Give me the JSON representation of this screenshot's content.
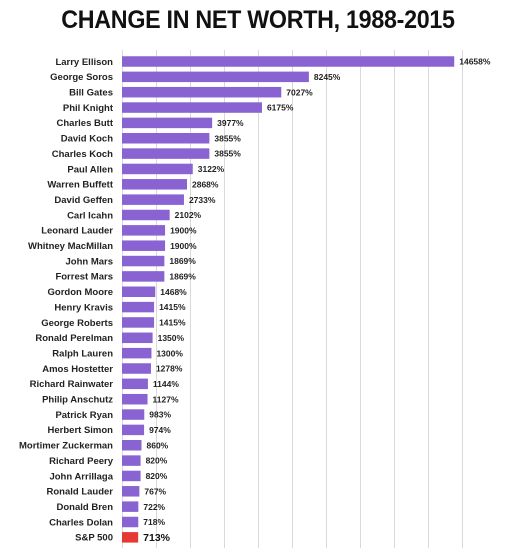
{
  "chart_data": {
    "type": "bar",
    "orientation": "horizontal",
    "title": "CHANGE IN NET WORTH, 1988-2015",
    "xlabel": "",
    "ylabel": "",
    "value_suffix": "%",
    "xlim": [
      0,
      15000
    ],
    "grid": true,
    "legend": "none",
    "colors": {
      "bar": "#8A63D2",
      "highlight": "#E53935"
    },
    "highlight_category": "S&P 500",
    "categories": [
      "Larry Ellison",
      "George Soros",
      "Bill Gates",
      "Phil Knight",
      "Charles Butt",
      "David Koch",
      "Charles Koch",
      "Paul Allen",
      "Warren Buffett",
      "David Geffen",
      "Carl Icahn",
      "Leonard Lauder",
      "Whitney MacMillan",
      "John Mars",
      "Forrest Mars",
      "Gordon Moore",
      "Henry Kravis",
      "George Roberts",
      "Ronald Perelman",
      "Ralph Lauren",
      "Amos Hostetter",
      "Richard Rainwater",
      "Philip Anschutz",
      "Patrick Ryan",
      "Herbert Simon",
      "Mortimer Zuckerman",
      "Richard Peery",
      "John Arrillaga",
      "Ronald Lauder",
      "Donald Bren",
      "Charles Dolan",
      "S&P 500"
    ],
    "values": [
      14658,
      8245,
      7027,
      6175,
      3977,
      3855,
      3855,
      3122,
      2868,
      2733,
      2102,
      1900,
      1900,
      1869,
      1869,
      1468,
      1415,
      1415,
      1350,
      1300,
      1278,
      1144,
      1127,
      983,
      974,
      860,
      820,
      820,
      767,
      722,
      718,
      713
    ]
  }
}
